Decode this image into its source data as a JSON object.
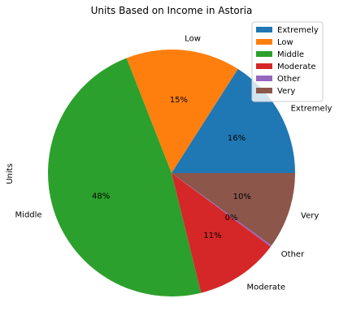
{
  "chart_data": {
    "type": "pie",
    "title": "Units Based on Income in Astoria",
    "ylabel": "Units",
    "start_angle_deg": 0,
    "direction": "counterclockwise",
    "legend_position": "top-right",
    "slices": [
      {
        "label": "Extremely",
        "value": 16,
        "pct_label": "16%",
        "color": "#1f77b4"
      },
      {
        "label": "Low",
        "value": 15,
        "pct_label": "15%",
        "color": "#ff7f0e"
      },
      {
        "label": "Middle",
        "value": 48,
        "pct_label": "48%",
        "color": "#2ca02c"
      },
      {
        "label": "Moderate",
        "value": 11,
        "pct_label": "11%",
        "color": "#d62728"
      },
      {
        "label": "Other",
        "value": 0.2,
        "pct_label": "0%",
        "color": "#9467bd"
      },
      {
        "label": "Very",
        "value": 10,
        "pct_label": "10%",
        "color": "#8c564b"
      }
    ]
  }
}
